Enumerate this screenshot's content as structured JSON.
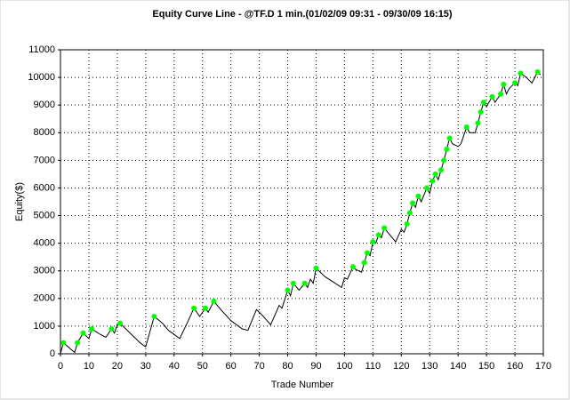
{
  "chart_data": {
    "type": "line",
    "title": "Equity Curve Line - @TF.D 1 min.(01/02/09 09:31 - 09/30/09 16:15)",
    "x_label": "Trade Number",
    "y_label": "Equity($)",
    "xlim": [
      0,
      170
    ],
    "xticks": [
      0,
      10,
      20,
      30,
      40,
      50,
      60,
      70,
      80,
      90,
      100,
      110,
      120,
      130,
      140,
      150,
      160,
      170
    ],
    "ylim": [
      0,
      11000
    ],
    "yticks": [
      0,
      1000,
      2000,
      3000,
      4000,
      5000,
      6000,
      7000,
      8000,
      9000,
      10000,
      11000
    ],
    "grid": true,
    "series": [
      {
        "color": "#000000",
        "marker": false,
        "x": [
          0,
          1,
          5,
          6,
          8,
          10,
          11,
          14,
          16,
          18,
          19,
          20,
          21,
          25,
          28,
          30,
          33,
          36,
          38,
          42,
          45,
          47,
          49,
          51,
          52,
          54,
          56,
          60,
          64,
          66,
          69,
          71,
          74,
          77,
          78,
          80,
          81,
          82,
          84,
          86,
          87,
          88,
          89,
          90,
          93,
          96,
          99,
          100,
          101,
          103,
          104,
          106,
          107,
          108,
          109,
          110,
          111,
          112,
          113,
          114,
          116,
          118,
          120,
          121,
          122,
          123,
          124,
          125,
          126,
          127,
          129,
          130,
          131,
          132,
          133,
          134,
          135,
          136,
          137,
          138,
          140,
          141,
          143,
          144,
          146,
          147,
          148,
          149,
          150,
          152,
          153,
          155,
          156,
          157,
          158,
          160,
          161,
          162,
          164,
          166,
          168,
          169
        ],
        "values": [
          0,
          400,
          50,
          400,
          750,
          550,
          900,
          700,
          600,
          900,
          750,
          1050,
          1100,
          700,
          400,
          250,
          1350,
          1100,
          850,
          550,
          1200,
          1650,
          1350,
          1650,
          1500,
          1900,
          1650,
          1200,
          900,
          850,
          1600,
          1400,
          1050,
          1750,
          1650,
          2300,
          2100,
          2550,
          2300,
          2550,
          2400,
          2700,
          2550,
          3100,
          2800,
          2600,
          2400,
          2750,
          2700,
          3150,
          3050,
          2950,
          3300,
          3650,
          3550,
          4050,
          4000,
          4300,
          4200,
          4550,
          4300,
          4050,
          4500,
          4400,
          4700,
          5100,
          5450,
          5300,
          5700,
          5500,
          6000,
          5800,
          6250,
          6500,
          6300,
          6650,
          7000,
          7400,
          7800,
          7600,
          7500,
          7600,
          8200,
          8000,
          8000,
          8350,
          8750,
          9100,
          8950,
          9300,
          9100,
          9400,
          9750,
          9400,
          9600,
          9800,
          9700,
          10150,
          10000,
          9800,
          10200,
          10100
        ]
      },
      {
        "color": "#00ff00",
        "marker": true,
        "x": [
          1,
          6,
          8,
          11,
          18,
          21,
          33,
          47,
          51,
          54,
          80,
          82,
          86,
          90,
          103,
          107,
          108,
          110,
          112,
          114,
          122,
          123,
          124,
          126,
          129,
          131,
          132,
          134,
          135,
          136,
          137,
          143,
          147,
          148,
          149,
          152,
          155,
          156,
          160,
          162,
          168
        ],
        "values": [
          400,
          400,
          750,
          900,
          900,
          1100,
          1350,
          1650,
          1650,
          1900,
          2300,
          2550,
          2550,
          3100,
          3150,
          3300,
          3650,
          4050,
          4300,
          4550,
          4700,
          5100,
          5450,
          5700,
          6000,
          6250,
          6500,
          6650,
          7000,
          7400,
          7800,
          8200,
          8350,
          8750,
          9100,
          9300,
          9400,
          9750,
          9800,
          10150,
          10200
        ]
      }
    ]
  }
}
